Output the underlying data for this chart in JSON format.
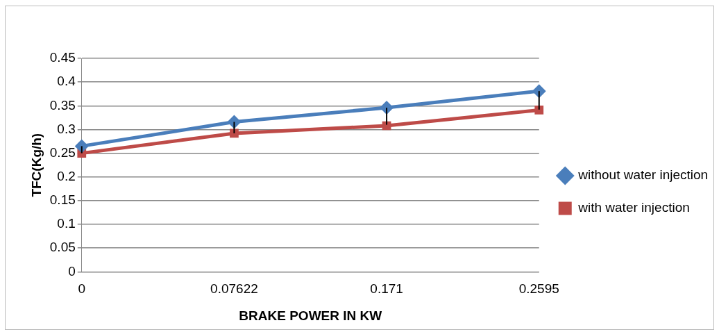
{
  "chart_data": {
    "type": "line",
    "xlabel": "BRAKE POWER IN KW",
    "ylabel": "TFC(Kg/h)",
    "categories": [
      "0",
      "0.07622",
      "0.171",
      "0.2595"
    ],
    "series": [
      {
        "name": "without water injection",
        "color": "#4a7ebb",
        "marker": "diamond",
        "values": [
          0.265,
          0.316,
          0.346,
          0.381
        ],
        "errors": [
          [
            0.25,
            0.265
          ],
          [
            0.292,
            0.316
          ],
          [
            0.31,
            0.346
          ],
          [
            0.342,
            0.381
          ]
        ]
      },
      {
        "name": "with water injection",
        "color": "#be4b48",
        "marker": "square",
        "values": [
          0.25,
          0.292,
          0.308,
          0.341
        ]
      }
    ],
    "ylim": [
      0,
      0.45
    ],
    "yticks": [
      0,
      0.05,
      0.1,
      0.15,
      0.2,
      0.25,
      0.3,
      0.35,
      0.4,
      0.45
    ],
    "grid": "y",
    "legend": "right",
    "line_style": "solid"
  }
}
